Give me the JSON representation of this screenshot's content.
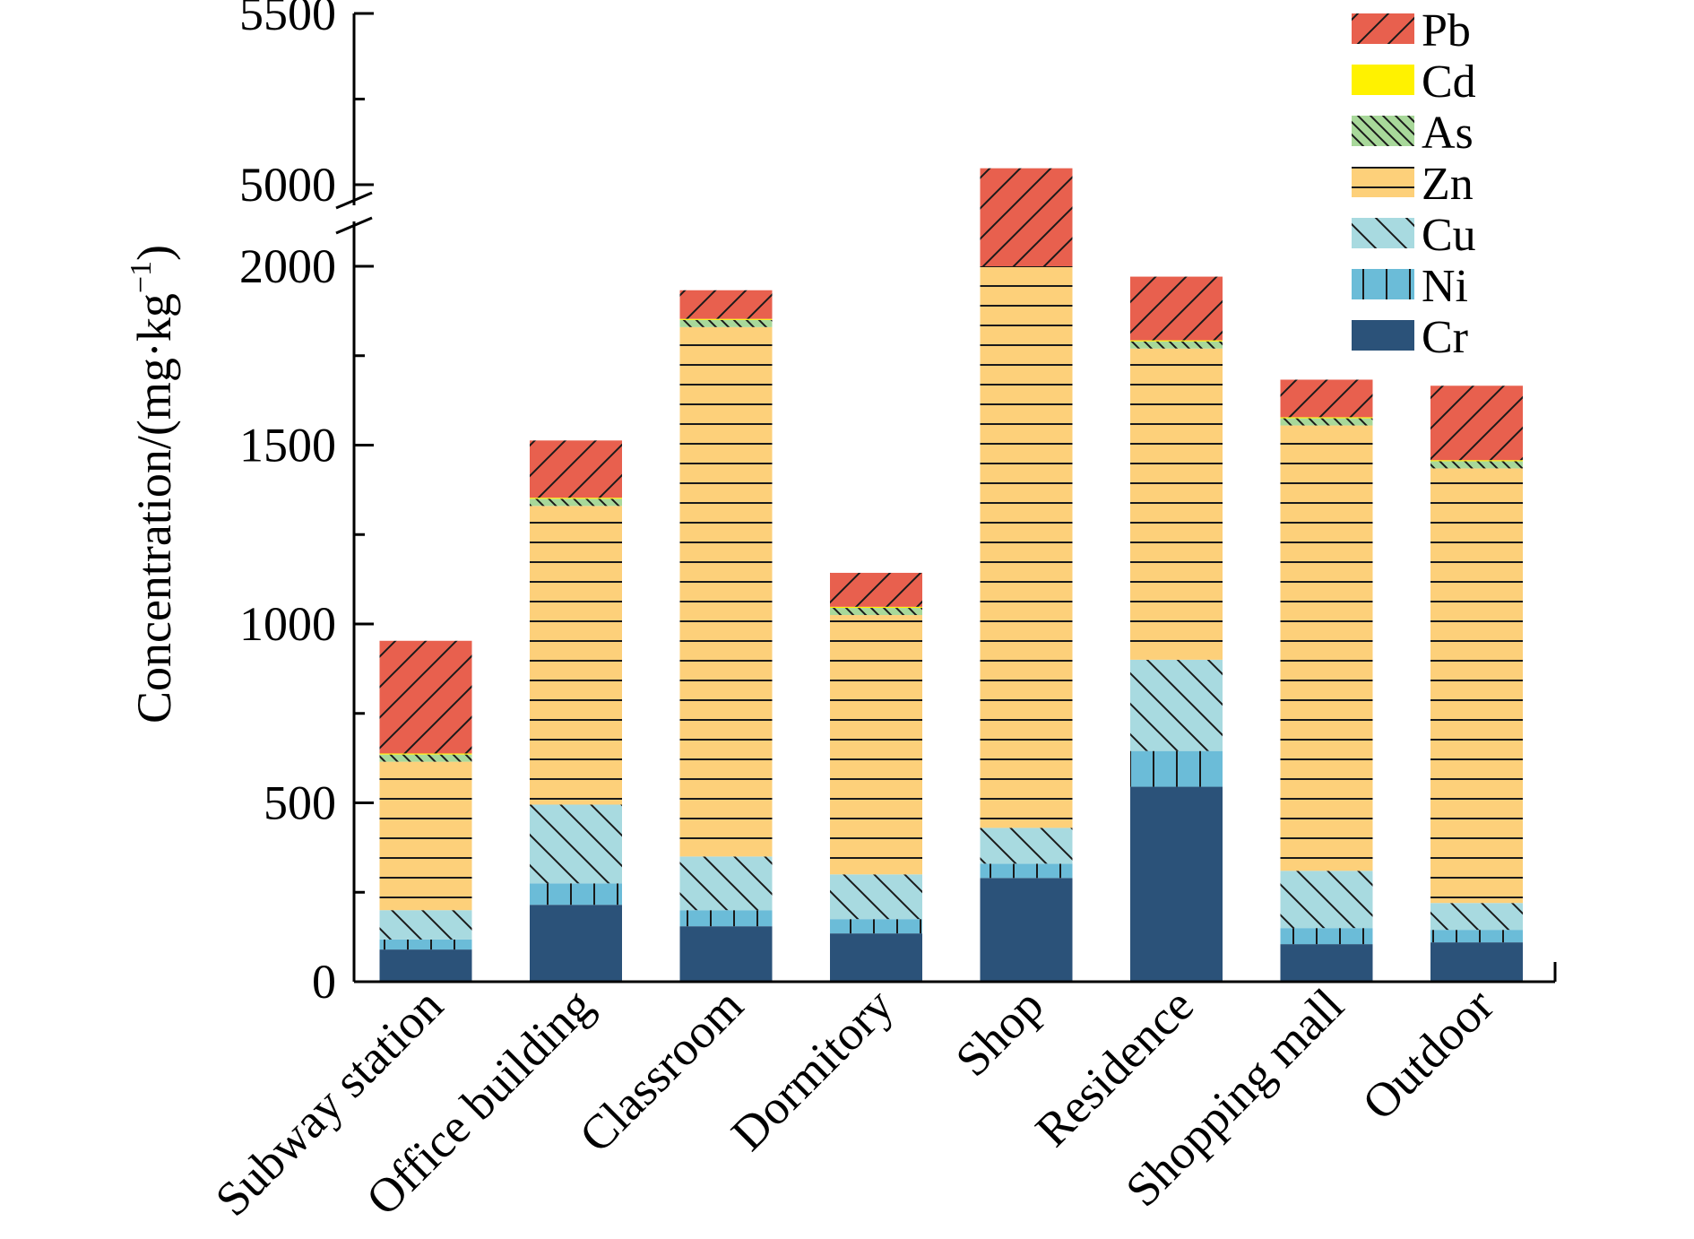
{
  "chart_data": {
    "type": "bar",
    "stacked": true,
    "ylabel": {
      "main": "Concentration/(mg·kg",
      "superscript": "−1",
      "close": ")"
    },
    "y_axis_break": [
      2000,
      5000
    ],
    "ylim_lower": [
      0,
      2000
    ],
    "ylim_upper": [
      5000,
      5500
    ],
    "yticks_lower": [
      "0",
      "500",
      "1000",
      "1500",
      "2000"
    ],
    "yticks_upper": [
      "5000",
      "5500"
    ],
    "categories": [
      "Subway station",
      "Office building",
      "Classroom",
      "Dormitory",
      "Shop",
      "Residence",
      "Shopping mall",
      "Outdoor"
    ],
    "series": [
      {
        "name": "Cr",
        "color": "#2b5279",
        "pattern": "none",
        "values": [
          90,
          215,
          155,
          135,
          290,
          545,
          105,
          110
        ]
      },
      {
        "name": "Ni",
        "color": "#6bbcd8",
        "pattern": "vertical",
        "values": [
          28,
          60,
          45,
          40,
          40,
          100,
          45,
          35
        ]
      },
      {
        "name": "Cu",
        "color": "#a8dae0",
        "pattern": "backslash",
        "values": [
          82,
          220,
          150,
          125,
          100,
          255,
          160,
          75
        ]
      },
      {
        "name": "Zn",
        "color": "#fdd07a",
        "pattern": "horizontal",
        "values": [
          415,
          835,
          1480,
          725,
          4520,
          870,
          1245,
          1215
        ]
      },
      {
        "name": "As",
        "color": "#a8d89a",
        "pattern": "backslash-dense",
        "values": [
          20,
          20,
          20,
          20,
          20,
          20,
          20,
          20
        ]
      },
      {
        "name": "Cd",
        "color": "#fff200",
        "pattern": "none",
        "values": [
          3,
          3,
          3,
          3,
          3,
          3,
          3,
          3
        ]
      },
      {
        "name": "Pb",
        "color": "#e8604e",
        "pattern": "slash",
        "values": [
          315,
          160,
          80,
          95,
          75,
          178,
          105,
          208
        ]
      }
    ],
    "legend": {
      "position": "top-right",
      "order": [
        "Pb",
        "Cd",
        "As",
        "Zn",
        "Cu",
        "Ni",
        "Cr"
      ]
    },
    "grid": false
  }
}
